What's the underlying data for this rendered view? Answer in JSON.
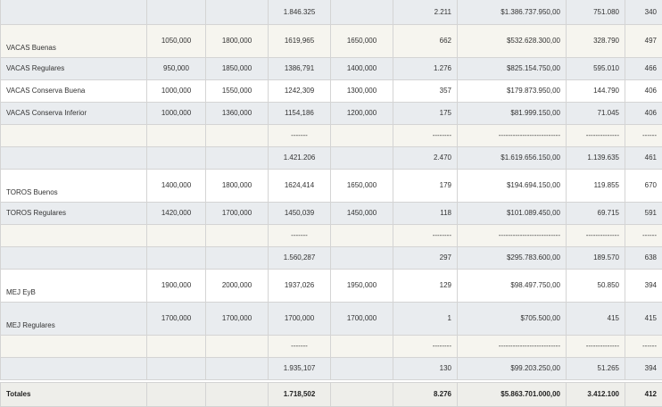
{
  "rows": [
    {
      "label": "",
      "c1": "",
      "c2": "",
      "c3": "1.846.325",
      "c4": "",
      "c5": "2.211",
      "c6": "$1.386.737.950,00",
      "c7": "751.080",
      "c8": "340"
    },
    {
      "label": "VACAS Buenas",
      "c1": "1050,000",
      "c2": "1800,000",
      "c3": "1619,965",
      "c4": "1650,000",
      "c5": "662",
      "c6": "$532.628.300,00",
      "c7": "328.790",
      "c8": "497"
    },
    {
      "label": "VACAS Regulares",
      "c1": "950,000",
      "c2": "1850,000",
      "c3": "1386,791",
      "c4": "1400,000",
      "c5": "1.276",
      "c6": "$825.154.750,00",
      "c7": "595.010",
      "c8": "466"
    },
    {
      "label": "VACAS Conserva Buena",
      "c1": "1000,000",
      "c2": "1550,000",
      "c3": "1242,309",
      "c4": "1300,000",
      "c5": "357",
      "c6": "$179.873.950,00",
      "c7": "144.790",
      "c8": "406"
    },
    {
      "label": "VACAS Conserva Inferior",
      "c1": "1000,000",
      "c2": "1360,000",
      "c3": "1154,186",
      "c4": "1200,000",
      "c5": "175",
      "c6": "$81.999.150,00",
      "c7": "71.045",
      "c8": "406"
    },
    {
      "label": "",
      "c1": "",
      "c2": "",
      "c3": "-------",
      "c4": "",
      "c5": "--------",
      "c6": "--------------------------",
      "c7": "--------------",
      "c8": "------"
    },
    {
      "label": "",
      "c1": "",
      "c2": "",
      "c3": "1.421.206",
      "c4": "",
      "c5": "2.470",
      "c6": "$1.619.656.150,00",
      "c7": "1.139.635",
      "c8": "461"
    },
    {
      "label": "TOROS Buenos",
      "c1": "1400,000",
      "c2": "1800,000",
      "c3": "1624,414",
      "c4": "1650,000",
      "c5": "179",
      "c6": "$194.694.150,00",
      "c7": "119.855",
      "c8": "670"
    },
    {
      "label": "TOROS Regulares",
      "c1": "1420,000",
      "c2": "1700,000",
      "c3": "1450,039",
      "c4": "1450,000",
      "c5": "118",
      "c6": "$101.089.450,00",
      "c7": "69.715",
      "c8": "591"
    },
    {
      "label": "",
      "c1": "",
      "c2": "",
      "c3": "-------",
      "c4": "",
      "c5": "--------",
      "c6": "--------------------------",
      "c7": "--------------",
      "c8": "------"
    },
    {
      "label": "",
      "c1": "",
      "c2": "",
      "c3": "1.560,287",
      "c4": "",
      "c5": "297",
      "c6": "$295.783.600,00",
      "c7": "189.570",
      "c8": "638"
    },
    {
      "label": "MEJ EyB",
      "c1": "1900,000",
      "c2": "2000,000",
      "c3": "1937,026",
      "c4": "1950,000",
      "c5": "129",
      "c6": "$98.497.750,00",
      "c7": "50.850",
      "c8": "394"
    },
    {
      "label": "MEJ Regulares",
      "c1": "1700,000",
      "c2": "1700,000",
      "c3": "1700,000",
      "c4": "1700,000",
      "c5": "1",
      "c6": "$705.500,00",
      "c7": "415",
      "c8": "415"
    },
    {
      "label": "",
      "c1": "",
      "c2": "",
      "c3": "-------",
      "c4": "",
      "c5": "--------",
      "c6": "--------------------------",
      "c7": "--------------",
      "c8": "------"
    },
    {
      "label": "",
      "c1": "",
      "c2": "",
      "c3": "1.935,107",
      "c4": "",
      "c5": "130",
      "c6": "$99.203.250,00",
      "c7": "51.265",
      "c8": "394"
    }
  ],
  "totals": {
    "label": "Totales",
    "c3": "1.718,502",
    "c5": "8.276",
    "c6": "$5.863.701.000,00",
    "c7": "3.412.100",
    "c8": "412"
  }
}
